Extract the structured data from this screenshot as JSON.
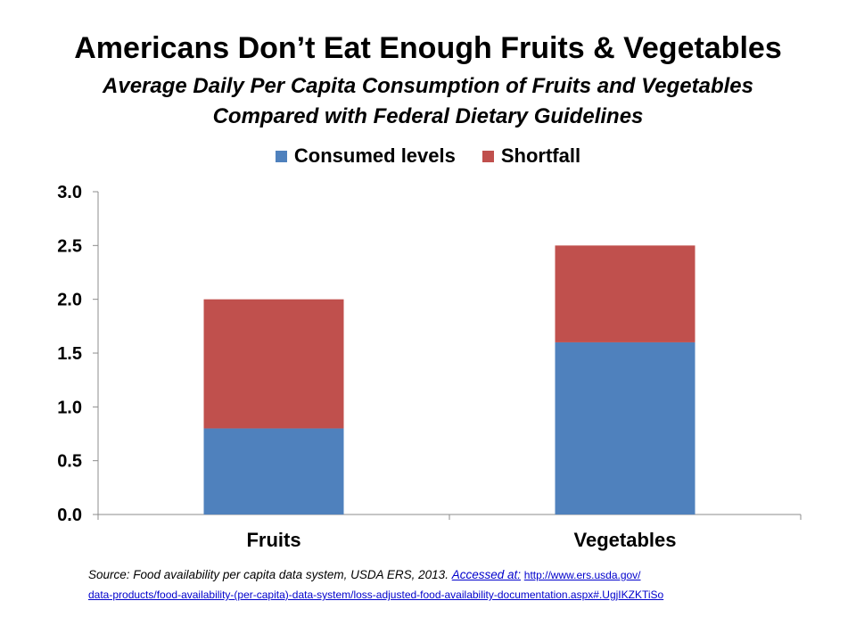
{
  "header": {
    "title": "Americans Don’t Eat Enough Fruits & Vegetables",
    "subtitle_line1": "Average Daily Per Capita Consumption of Fruits and Vegetables",
    "subtitle_line2": "Compared with Federal Dietary Guidelines"
  },
  "colors": {
    "consumed": "#4f81bd",
    "shortfall": "#c0504d",
    "axis": "#8c8c8c",
    "link": "#0000cc"
  },
  "chart_data": {
    "type": "bar",
    "stacked": true,
    "categories": [
      "Fruits",
      "Vegetables"
    ],
    "series": [
      {
        "name": "Consumed levels",
        "values": [
          0.8,
          1.6
        ]
      },
      {
        "name": "Shortfall",
        "values": [
          1.2,
          0.9
        ]
      }
    ],
    "ylim": [
      0,
      3.0
    ],
    "yticks": [
      "0.0",
      "0.5",
      "1.0",
      "1.5",
      "2.0",
      "2.5",
      "3.0"
    ],
    "xlabel": "",
    "ylabel": "",
    "legend_position": "top-center",
    "grid": false
  },
  "source": {
    "citation": "Source: Food availability per capita data system, USDA ERS, 2013.",
    "accessed_label": "Accessed at:",
    "url_line1": "http://www.ers.usda.gov/",
    "url_line2": "data-products/food-availability-(per-capita)-data-system/loss-adjusted-food-availability-documentation.aspx#.UgjIKZKTiSo"
  }
}
